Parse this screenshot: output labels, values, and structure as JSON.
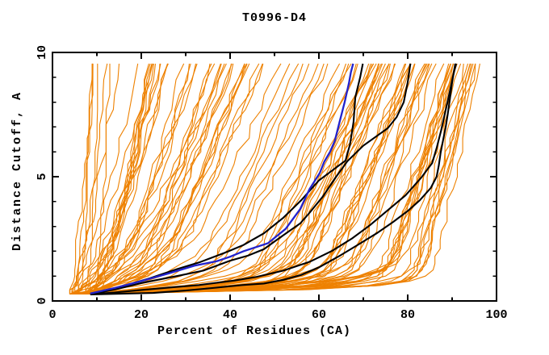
{
  "chart_data": {
    "type": "line",
    "title": "T0996-D4",
    "axes": {
      "x": {
        "label": "Percent of Residues (CA)",
        "min": 0,
        "max": 100,
        "major_ticks": [
          0,
          20,
          40,
          60,
          80,
          100
        ],
        "minor_tick_step": 10
      },
      "y": {
        "label": "Distance Cutoff, A",
        "min": 0,
        "max": 10,
        "major_ticks": [
          0,
          5,
          10
        ],
        "minor_tick_step": 1
      }
    },
    "grid": "off",
    "legend": "none",
    "colors": {
      "background_model": "#ee8100",
      "highlight_model": "#000000",
      "reference_model": "#2222cc",
      "frame": "#000000"
    },
    "highlighted_series": [
      {
        "name": "black-model-a",
        "color_key": "highlight_model",
        "points": [
          [
            8.5,
            0.28
          ],
          [
            12,
            0.42
          ],
          [
            16,
            0.6
          ],
          [
            22,
            0.92
          ],
          [
            28,
            1.28
          ],
          [
            33,
            1.55
          ],
          [
            39,
            1.95
          ],
          [
            43,
            2.25
          ],
          [
            47.6,
            2.72
          ],
          [
            52,
            3.35
          ],
          [
            56,
            4.05
          ],
          [
            60,
            4.85
          ],
          [
            63,
            5.25
          ],
          [
            66,
            5.65
          ],
          [
            67,
            6.3
          ],
          [
            67.8,
            7.2
          ],
          [
            68.2,
            8.2
          ],
          [
            69.3,
            9.0
          ],
          [
            69.9,
            9.55
          ]
        ]
      },
      {
        "name": "black-model-b",
        "color_key": "highlight_model",
        "points": [
          [
            9,
            0.28
          ],
          [
            15,
            0.5
          ],
          [
            20,
            0.72
          ],
          [
            28,
            1.0
          ],
          [
            34,
            1.22
          ],
          [
            40,
            1.62
          ],
          [
            44,
            1.82
          ],
          [
            47.6,
            2.08
          ],
          [
            51,
            2.52
          ],
          [
            55.8,
            3.12
          ],
          [
            57.9,
            3.55
          ],
          [
            60.9,
            4.2
          ],
          [
            63.9,
            5.0
          ],
          [
            66.4,
            5.62
          ],
          [
            70,
            6.25
          ],
          [
            75.5,
            6.95
          ],
          [
            77.5,
            7.4
          ],
          [
            79.1,
            8.0
          ],
          [
            80,
            8.8
          ],
          [
            80.6,
            9.55
          ]
        ]
      },
      {
        "name": "black-model-c",
        "color_key": "highlight_model",
        "points": [
          [
            8.5,
            0.26
          ],
          [
            15,
            0.29
          ],
          [
            22.7,
            0.32
          ],
          [
            30,
            0.42
          ],
          [
            36,
            0.52
          ],
          [
            42.7,
            0.64
          ],
          [
            47.6,
            0.7
          ],
          [
            52,
            0.85
          ],
          [
            56,
            1.05
          ],
          [
            60,
            1.35
          ],
          [
            64.5,
            1.8
          ],
          [
            68.8,
            2.26
          ],
          [
            73,
            2.72
          ],
          [
            76.7,
            3.18
          ],
          [
            80,
            3.62
          ],
          [
            82.7,
            4.05
          ],
          [
            85.2,
            4.55
          ],
          [
            86.5,
            5.0
          ],
          [
            87,
            5.45
          ],
          [
            87.4,
            5.95
          ],
          [
            88,
            6.5
          ],
          [
            88.5,
            6.95
          ],
          [
            89,
            7.5
          ],
          [
            89.4,
            8.0
          ],
          [
            90,
            8.8
          ],
          [
            90.7,
            9.55
          ]
        ]
      },
      {
        "name": "black-model-d",
        "color_key": "highlight_model",
        "points": [
          [
            8.8,
            0.27
          ],
          [
            14,
            0.34
          ],
          [
            20,
            0.44
          ],
          [
            27,
            0.55
          ],
          [
            33,
            0.64
          ],
          [
            41,
            0.82
          ],
          [
            46,
            0.97
          ],
          [
            52,
            1.22
          ],
          [
            58,
            1.58
          ],
          [
            63,
            2.02
          ],
          [
            67.5,
            2.52
          ],
          [
            71.5,
            3.05
          ],
          [
            75.5,
            3.65
          ],
          [
            79.5,
            4.25
          ],
          [
            83,
            4.95
          ],
          [
            85.5,
            5.55
          ],
          [
            86.5,
            6.15
          ],
          [
            87.5,
            6.85
          ],
          [
            88.5,
            7.65
          ],
          [
            89.5,
            8.45
          ],
          [
            90.2,
            9.05
          ],
          [
            90.9,
            9.55
          ]
        ]
      },
      {
        "name": "blue-model",
        "color_key": "reference_model",
        "points": [
          [
            8.5,
            0.3
          ],
          [
            11,
            0.4
          ],
          [
            14,
            0.52
          ],
          [
            20,
            0.8
          ],
          [
            26,
            1.1
          ],
          [
            32,
            1.42
          ],
          [
            37,
            1.6
          ],
          [
            40,
            1.78
          ],
          [
            43,
            2.0
          ],
          [
            48.5,
            2.32
          ],
          [
            52.5,
            2.9
          ],
          [
            55.8,
            3.7
          ],
          [
            57.9,
            4.5
          ],
          [
            60.2,
            5.15
          ],
          [
            61.2,
            5.6
          ],
          [
            62.5,
            6.0
          ],
          [
            63.6,
            6.45
          ],
          [
            64.5,
            7.1
          ],
          [
            65.8,
            8.0
          ],
          [
            66.8,
            8.8
          ],
          [
            67.2,
            9.2
          ],
          [
            67.7,
            9.55
          ]
        ]
      }
    ],
    "background_models": {
      "color_key": "background_model",
      "count": 108,
      "seed": 20181201,
      "start_percent_range": [
        3.8,
        9.5
      ],
      "clusters": [
        {
          "count": 40,
          "top_percent_range": [
            8.5,
            46
          ]
        },
        {
          "count": 12,
          "top_percent_range": [
            46,
            66
          ]
        },
        {
          "count": 56,
          "top_percent_range": [
            66,
            97
          ]
        }
      ],
      "cutoff_samples": [
        0.28,
        0.45,
        0.62,
        0.8,
        1.0,
        1.25,
        1.5,
        1.8,
        2.1,
        2.45,
        2.8,
        3.2,
        3.6,
        4.05,
        4.5,
        5.0,
        5.5,
        6.0,
        6.55,
        7.1,
        7.7,
        8.3,
        8.9,
        9.55
      ],
      "description": "Approximately 108 orange server-model curves fanning from (~4-9%, 0.3A) to tops between ~9% and ~97% at cutoff 9.55A"
    }
  }
}
